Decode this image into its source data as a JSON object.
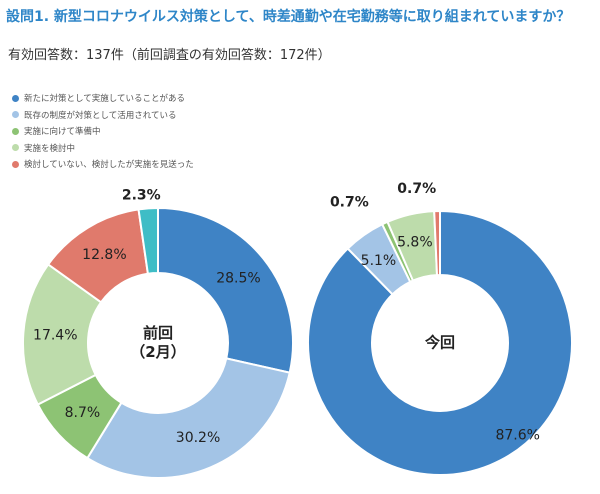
{
  "question": "設問1. 新型コロナウイルス対策として、時差通勤や在宅勤務等に取り組まれていますか？",
  "responses_text": "有効回答数：137件（前回調査の有効回答数：172件）",
  "legend": [
    {
      "label": "新たに対策として実施していることがある",
      "color": "#3f83c5"
    },
    {
      "label": "既存の制度が対策として活用されている",
      "color": "#a3c4e6"
    },
    {
      "label": "実施に向けて準備中",
      "color": "#8dc374"
    },
    {
      "label": "実施を検討中",
      "color": "#bddcab"
    },
    {
      "label": "検討していない、検討したが実施を見送った",
      "color": "#e07a6c"
    }
  ],
  "chart_data": [
    {
      "type": "pie",
      "name": "前回（2月）",
      "center_lines": [
        "前回",
        "（2月）"
      ],
      "slices": [
        {
          "category": "新たに対策として実施していることがある",
          "value": 28.5,
          "label": "28.5%",
          "color": "#3f83c5"
        },
        {
          "category": "既存の制度が対策として活用されている",
          "value": 30.2,
          "label": "30.2%",
          "color": "#a3c4e6"
        },
        {
          "category": "実施に向けて準備中",
          "value": 8.7,
          "label": "8.7%",
          "color": "#8dc374"
        },
        {
          "category": "実施を検討中",
          "value": 17.4,
          "label": "17.4%",
          "color": "#bddcab"
        },
        {
          "category": "検討していない、検討したが実施を見送った",
          "value": 12.8,
          "label": "12.8%",
          "color": "#e07a6c"
        },
        {
          "category": "",
          "value": 2.3,
          "label": "2.3%",
          "color": "#3fbdc6"
        }
      ]
    },
    {
      "type": "pie",
      "name": "今回",
      "center_lines": [
        "今回"
      ],
      "slices": [
        {
          "category": "新たに対策として実施していることがある",
          "value": 87.6,
          "label": "87.6%",
          "color": "#3f83c5"
        },
        {
          "category": "既存の制度が対策として活用されている",
          "value": 5.1,
          "label": "5.1%",
          "color": "#a3c4e6"
        },
        {
          "category": "実施に向けて準備中",
          "value": 0.7,
          "label": "0.7%",
          "color": "#8dc374"
        },
        {
          "category": "実施を検討中",
          "value": 5.8,
          "label": "5.8%",
          "color": "#bddcab"
        },
        {
          "category": "検討していない、検討したが実施を見送った",
          "value": 0.7,
          "label": "0.7%",
          "color": "#e07a6c"
        }
      ]
    }
  ]
}
